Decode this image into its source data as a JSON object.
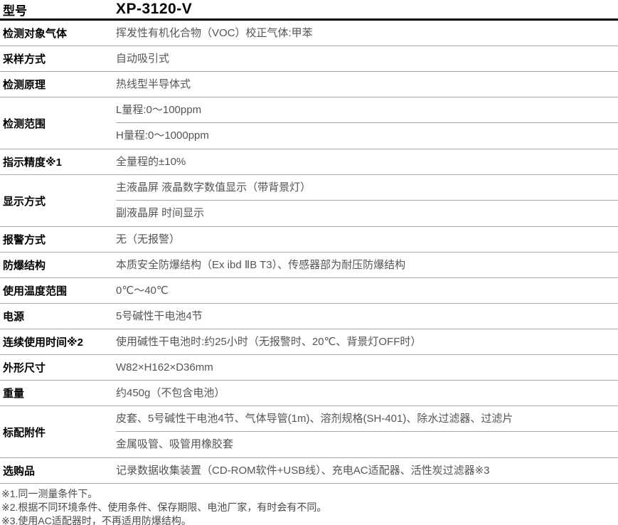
{
  "header": {
    "label": "型号",
    "model": "XP-3120-V"
  },
  "rows": [
    {
      "label": "检测对象气体",
      "values": [
        "挥发性有机化合物（VOC）校正气体:甲苯"
      ]
    },
    {
      "label": "采样方式",
      "values": [
        "自动吸引式"
      ]
    },
    {
      "label": "检测原理",
      "values": [
        "热线型半导体式"
      ]
    },
    {
      "label": "检测范围",
      "values": [
        "L量程:0～100ppm",
        "H量程:0～1000ppm"
      ]
    },
    {
      "label": "指示精度※1",
      "values": [
        "全量程的±10%"
      ]
    },
    {
      "label": "显示方式",
      "values": [
        "主液晶屏 液晶数字数值显示（带背景灯）",
        "副液晶屏 时间显示"
      ]
    },
    {
      "label": "报警方式",
      "values": [
        "无（无报警）"
      ]
    },
    {
      "label": "防爆结构",
      "values": [
        "本质安全防爆结构（Ex ibd ⅡB T3）、传感器部为耐压防爆结构"
      ]
    },
    {
      "label": "使用温度范围",
      "values": [
        "0℃～40℃"
      ]
    },
    {
      "label": "电源",
      "values": [
        "5号碱性干电池4节"
      ]
    },
    {
      "label": "连续使用时间※2",
      "values": [
        "使用碱性干电池时:约25小时（无报警时、20℃、背景灯OFF时）"
      ]
    },
    {
      "label": "外形尺寸",
      "values": [
        "W82×H162×D36mm"
      ]
    },
    {
      "label": "重量",
      "values": [
        "约450g（不包含电池）"
      ]
    },
    {
      "label": "标配附件",
      "values": [
        "皮套、5号碱性干电池4节、气体导管(1m)、溶剂规格(SH-401)、除水过滤器、过滤片",
        "金属吸管、吸管用橡胶套"
      ]
    },
    {
      "label": "选购品",
      "values": [
        "记录数据收集装置（CD-ROM软件+USB线）、充电AC适配器、活性炭过滤器※3"
      ]
    }
  ],
  "footnotes": [
    "※1.同一测量条件下。",
    "※2.根据不同环境条件、使用条件、保存期限、电池厂家，有时会有不同。",
    "※3.使用AC适配器时，不再适用防爆结构。"
  ],
  "colors": {
    "label_text": "#000000",
    "value_text": "#555555",
    "thin_divider": "#a6a6a6",
    "thick_divider": "#000000",
    "background": "#ffffff"
  }
}
